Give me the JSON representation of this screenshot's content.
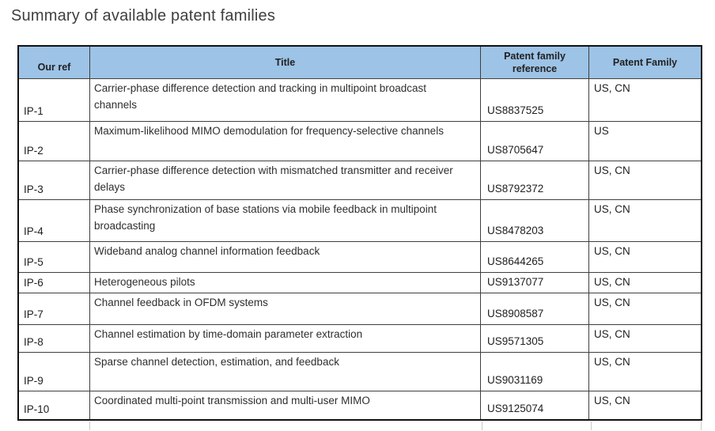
{
  "page": {
    "heading": "Summary of available patent families"
  },
  "table": {
    "headers": {
      "our_ref": "Our ref",
      "title": "Title",
      "family_ref": "Patent family reference",
      "family": "Patent Family"
    },
    "rows": [
      {
        "our_ref": "IP-1",
        "title": "Carrier-phase difference detection and tracking in multipoint broadcast channels",
        "family_ref": "US8837525",
        "family": "US, CN"
      },
      {
        "our_ref": "IP-2",
        "title": "Maximum-likelihood MIMO demodulation for frequency-selective channels",
        "family_ref": "US8705647",
        "family": "US"
      },
      {
        "our_ref": "IP-3",
        "title": "Carrier-phase difference detection with mismatched transmitter and receiver delays",
        "family_ref": "US8792372",
        "family": "US, CN"
      },
      {
        "our_ref": "IP-4",
        "title": "Phase synchronization of base stations via mobile feedback in multipoint broadcasting",
        "family_ref": "US8478203",
        "family": "US, CN"
      },
      {
        "our_ref": "IP-5",
        "title": "Wideband analog channel information feedback",
        "family_ref": "US8644265",
        "family": "US, CN"
      },
      {
        "our_ref": "IP-6",
        "title": "Heterogeneous pilots",
        "family_ref": "US9137077",
        "family": "US, CN"
      },
      {
        "our_ref": "IP-7",
        "title": "Channel feedback in OFDM systems",
        "family_ref": "US8908587",
        "family": "US, CN"
      },
      {
        "our_ref": "IP-8",
        "title": "Channel estimation by time-domain parameter extraction",
        "family_ref": "US9571305",
        "family": "US, CN"
      },
      {
        "our_ref": "IP-9",
        "title": "Sparse channel detection, estimation, and feedback",
        "family_ref": "US9031169",
        "family": "US, CN"
      },
      {
        "our_ref": "IP-10",
        "title": "Coordinated multi-point transmission and multi-user MIMO",
        "family_ref": "US9125074",
        "family": "US, CN"
      }
    ]
  },
  "colors": {
    "header_bg": "#9DC3E6",
    "border_thin": "#3F3F3F",
    "border_thick": "#111111",
    "heading_text": "#3F3F3F",
    "body_text": "#212121"
  }
}
